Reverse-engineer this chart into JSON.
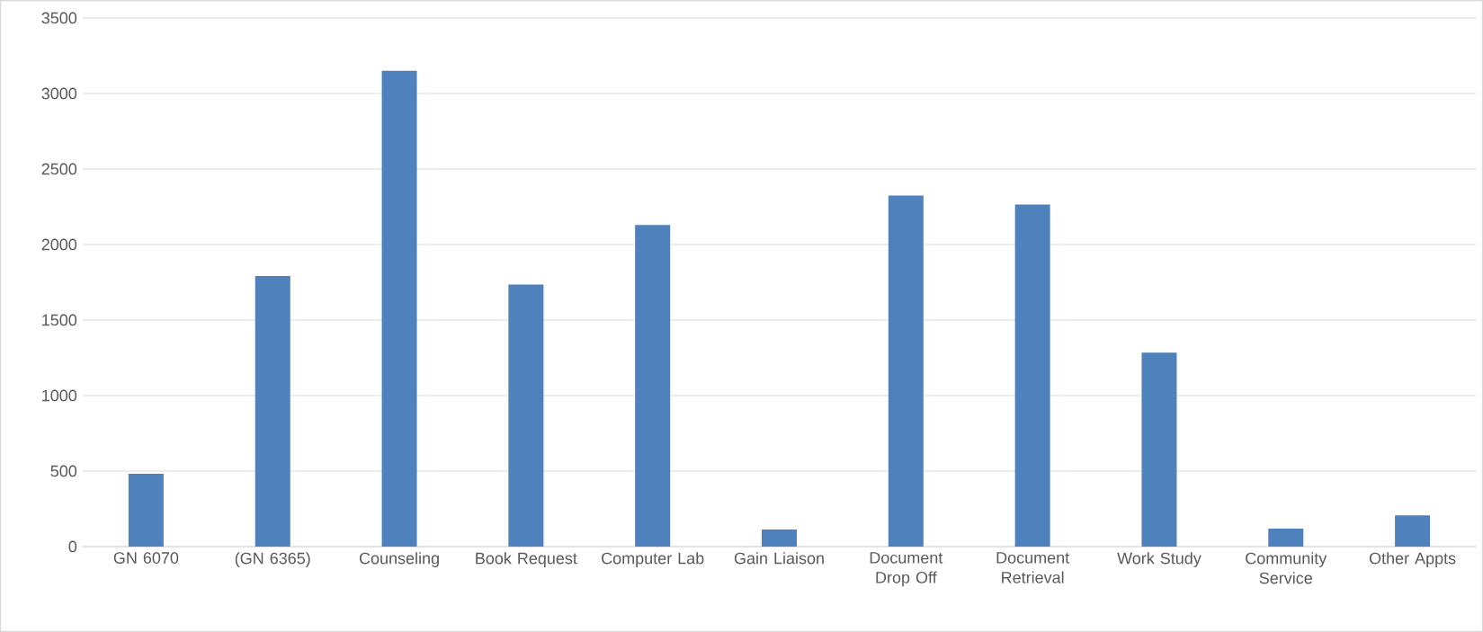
{
  "chart_data": {
    "type": "bar",
    "categories": [
      "GN 6070",
      "(GN 6365)",
      "Counseling",
      "Book Request",
      "Computer Lab",
      "Gain Liaison",
      "Document Drop Off",
      "Document Retrieval",
      "Work Study",
      "Community Service",
      "Other Appts"
    ],
    "values": [
      482,
      1791,
      3150,
      1735,
      2130,
      113,
      2325,
      2265,
      1284,
      119,
      207
    ],
    "color": "#4f81bd",
    "ylim": [
      0,
      3500
    ],
    "yticks": [
      0,
      500,
      1000,
      1500,
      2000,
      2500,
      3000,
      3500
    ],
    "grid": "y"
  }
}
